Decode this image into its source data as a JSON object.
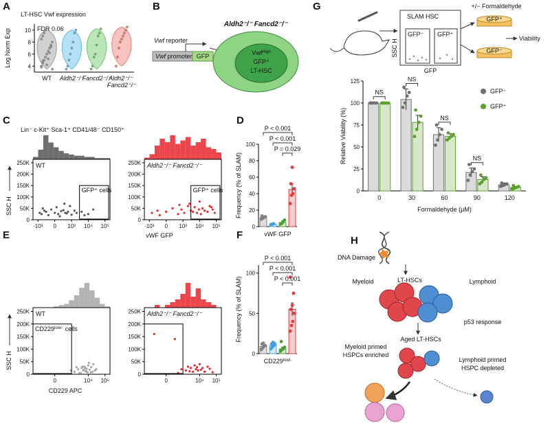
{
  "panel_letters": [
    "A",
    "B",
    "C",
    "D",
    "E",
    "F",
    "G",
    "H"
  ],
  "panel_c_header": "Lin⁻ c-Kit⁺ Sca-1⁺ CD41/48⁻ CD150⁺",
  "diagram_b": {
    "reporter_gene": "Vwf",
    "reporter_word": "reporter",
    "promoter_gene": "Vwf",
    "promoter_word": "promoter",
    "gfp": "GFP",
    "genotype": "Aldh2⁻/⁻ Fancd2⁻/⁻",
    "cell_gene": "Vwf",
    "cell_gene_sup": "High",
    "cell_gfp": "GFP⁺",
    "cell_type": "LT-HSC"
  },
  "diagram_g": {
    "facs_title": "SLAM HSC",
    "gate_neg": "GFP⁻",
    "gate_pos": "GFP⁺",
    "facs_ylabel": "SSC H",
    "facs_xlabel": "GFP",
    "treatment": "+/− Formaldehyde",
    "dish_pos": "GFP⁺",
    "dish_neg": "GFP⁻",
    "readout": "Viability"
  },
  "diagram_h": {
    "damage": "DNA Damage",
    "lt_hsc": "LT-HSCs",
    "myeloid": "Myeloid",
    "lymphoid": "Lymphoid",
    "p53": "p53 response",
    "aged": "Aged LT-HSCs",
    "myeloid_primed_1": "Myeloid primed",
    "myeloid_primed_2": "HSPCs enriched",
    "lymphoid_primed_1": "Lymphoid primed",
    "lymphoid_primed_2": "HSPC depleted"
  },
  "chart_data": [
    {
      "type": "violin",
      "title": "LT-HSC Vwf expression",
      "annotation": "FDR 0.06",
      "ylabel": "Log Norm Exp",
      "categories": [
        "WT",
        "Aldh2⁻/⁻",
        "Fancd2⁻/⁻",
        "Aldh2⁻/⁻ Fancd2⁻/⁻"
      ],
      "colors": [
        "#9a9a9a",
        "#5bbbe9",
        "#6cc667",
        "#ee7b70"
      ],
      "values": [
        [
          4,
          4.5,
          5,
          5.5,
          6,
          6.5,
          7,
          7.5,
          8,
          8.5,
          9,
          9.5,
          10,
          4.2,
          5.2,
          6.2,
          7.2,
          3.5,
          3.8,
          4.8
        ],
        [
          3.5,
          4,
          5,
          6,
          7,
          8,
          9.5,
          10
        ],
        [
          3.5,
          4,
          5.5,
          6,
          7.5,
          9,
          9.5,
          10.2
        ],
        [
          4,
          5.5,
          7,
          8,
          8.5,
          9,
          9.5,
          10,
          10.5
        ]
      ],
      "ylim": [
        3,
        11
      ],
      "yticks": [
        4,
        6,
        8,
        10
      ]
    },
    {
      "type": "scatter",
      "title": "WT",
      "ylabel": "SSC H",
      "gate_label": "GFP⁺ cells",
      "color": "#555555",
      "x": [
        -800,
        -600,
        -400,
        -300,
        -200,
        -100,
        0,
        50,
        100,
        200,
        300,
        400,
        500,
        600,
        800,
        1000,
        1500,
        2000,
        4000,
        6000,
        10000,
        20000,
        -500,
        150,
        350
      ],
      "y": [
        30000,
        25000,
        40000,
        35000,
        20000,
        45000,
        30000,
        55000,
        25000,
        38000,
        42000,
        30000,
        28000,
        35000,
        60000,
        22000,
        40000,
        30000,
        35000,
        20000,
        25000,
        45000,
        50000,
        15000,
        70000
      ],
      "histogram": [
        2,
        8,
        20,
        14,
        10,
        7,
        5,
        4,
        3,
        3,
        2,
        2,
        1,
        1,
        1
      ],
      "xlim": [
        -2000,
        200000
      ],
      "ylim": [
        0,
        265000
      ],
      "xticks": [
        {
          "value": -1000,
          "label": "-10³"
        },
        0,
        {
          "value": 1000,
          "label": "10³"
        },
        {
          "value": 10000,
          "label": "10⁴"
        },
        {
          "value": 100000,
          "label": "10⁵"
        }
      ],
      "yticks": [
        0,
        {
          "value": 50000,
          "label": "50K"
        },
        {
          "value": 100000,
          "label": "100K"
        },
        {
          "value": 150000,
          "label": "150K"
        },
        {
          "value": 200000,
          "label": "200K"
        },
        {
          "value": 250000,
          "label": "250K"
        }
      ]
    },
    {
      "type": "scatter",
      "title": "Aldh2⁻/⁻ Fancd2⁻/⁻",
      "xlabel": "vWF GFP",
      "gate_label": "GFP⁺ cells",
      "color": "#e8262b",
      "x": [
        -700,
        -300,
        0,
        200,
        500,
        800,
        1200,
        2000,
        3000,
        4000,
        5000,
        7000,
        9000,
        12000,
        15000,
        20000,
        30000,
        40000,
        60000,
        80000,
        -200,
        600,
        2500,
        10000,
        50000
      ],
      "y": [
        30000,
        40000,
        35000,
        50000,
        25000,
        45000,
        30000,
        60000,
        40000,
        35000,
        55000,
        30000,
        45000,
        25000,
        50000,
        40000,
        35000,
        60000,
        45000,
        30000,
        20000,
        65000,
        70000,
        80000,
        55000
      ],
      "histogram": [
        1,
        3,
        8,
        12,
        10,
        14,
        9,
        11,
        13,
        8,
        10,
        12,
        7,
        6,
        4
      ],
      "xlim": [
        -2000,
        200000
      ],
      "ylim": [
        0,
        265000
      ],
      "xticks": [
        {
          "value": -1000,
          "label": "-10³"
        },
        0,
        {
          "value": 1000,
          "label": "10³"
        },
        {
          "value": 10000,
          "label": "10⁴"
        },
        {
          "value": 100000,
          "label": "10⁵"
        }
      ],
      "yticks": [
        0,
        {
          "value": 50000,
          "label": "50K"
        },
        {
          "value": 100000,
          "label": "100K"
        },
        {
          "value": 150000,
          "label": "150K"
        },
        {
          "value": 200000,
          "label": "200K"
        },
        {
          "value": 250000,
          "label": "250K"
        }
      ]
    },
    {
      "type": "bar",
      "ylabel": "Frequency (% of SLAM)",
      "xlabel": "vWF GFP",
      "colors": [
        "#808080",
        "#3ea0e0",
        "#4aa02c",
        "#e8383a"
      ],
      "series": [
        {
          "values": [
            11,
            3,
            5,
            45
          ],
          "errors": [
            1,
            0.7,
            2,
            7
          ],
          "points": [
            [
              9,
              10,
              11,
              12,
              13,
              11
            ],
            [
              2.5,
              3,
              3.5
            ],
            [
              3,
              4,
              6,
              8
            ],
            [
              28,
              38,
              40,
              46,
              52,
              72
            ]
          ]
        }
      ],
      "annotations": [
        "P < 0.001",
        "P < 0.001",
        "P = 0.029"
      ],
      "ylim": [
        0,
        100
      ],
      "yticks": [
        0,
        20,
        40,
        60,
        80,
        100
      ]
    },
    {
      "type": "scatter",
      "title": "WT",
      "ylabel": "SSC H",
      "xlabel": "CD229 APC",
      "gate_label": "CD229",
      "gate_label_sup": "low/-",
      "gate_label_end": "cells",
      "color": "#a6a6a6",
      "x": [
        1500,
        2500,
        3000,
        4000,
        5000,
        6000,
        7000,
        8000,
        9000,
        10000,
        12000,
        15000,
        18000,
        20000,
        25000,
        3500,
        4500,
        5500,
        6500,
        7500,
        11000,
        14000,
        2000,
        30000,
        900
      ],
      "y": [
        10000,
        20000,
        5000,
        25000,
        15000,
        30000,
        12000,
        22000,
        8000,
        35000,
        18000,
        28000,
        10000,
        40000,
        15000,
        5000,
        30000,
        18000,
        25000,
        12000,
        45000,
        8000,
        28000,
        20000,
        15000
      ],
      "histogram": [
        0,
        0,
        0,
        0,
        1,
        2,
        3,
        6,
        10,
        16,
        20,
        14,
        8,
        3,
        1
      ],
      "xlim": [
        -2000,
        200000
      ],
      "ylim": [
        0,
        265000
      ],
      "xticks": [
        0,
        {
          "value": 10000,
          "label": "10⁴"
        },
        {
          "value": 100000,
          "label": "10⁵"
        }
      ],
      "yticks": [
        0,
        {
          "value": 50000,
          "label": "50K"
        },
        {
          "value": 100000,
          "label": "100K"
        },
        {
          "value": 150000,
          "label": "150K"
        },
        {
          "value": 200000,
          "label": "200K"
        },
        {
          "value": 250000,
          "label": "250K"
        }
      ]
    },
    {
      "type": "scatter",
      "title": "Aldh2⁻/⁻ Fancd2⁻/⁻",
      "color": "#e8262b",
      "x": [
        -500,
        300,
        800,
        1500,
        2000,
        3000,
        4000,
        5000,
        6000,
        8000,
        10000,
        15000,
        20000,
        30000,
        500,
        2500,
        7000,
        12000,
        40000,
        60000
      ],
      "y": [
        160000,
        140000,
        20000,
        15000,
        30000,
        25000,
        10000,
        35000,
        20000,
        15000,
        40000,
        25000,
        10000,
        30000,
        5000,
        12000,
        28000,
        18000,
        22000,
        8000
      ],
      "histogram": [
        0,
        0,
        1,
        0,
        1,
        2,
        3,
        5,
        9,
        4,
        7,
        3,
        2,
        1,
        0
      ],
      "xlim": [
        -2000,
        200000
      ],
      "ylim": [
        0,
        265000
      ],
      "xticks": [
        0,
        {
          "value": 10000,
          "label": "10⁴"
        },
        {
          "value": 100000,
          "label": "10⁵"
        }
      ],
      "yticks": [
        0,
        {
          "value": 50000,
          "label": "50K"
        },
        {
          "value": 100000,
          "label": "100K"
        },
        {
          "value": 150000,
          "label": "150K"
        },
        {
          "value": 200000,
          "label": "200K"
        },
        {
          "value": 250000,
          "label": "250K"
        }
      ]
    },
    {
      "type": "bar",
      "ylabel": "Frequency (% of SLAM)",
      "xlabel": "CD229",
      "xlabel_sup": "low/-",
      "colors": [
        "#808080",
        "#3ea0e0",
        "#4aa02c",
        "#e8383a"
      ],
      "series": [
        {
          "values": [
            9,
            10,
            6,
            55
          ],
          "errors": [
            1.5,
            1,
            2,
            8
          ],
          "points": [
            [
              5,
              7,
              9,
              10,
              12,
              13
            ],
            [
              6,
              8,
              10,
              11,
              12,
              14,
              13
            ],
            [
              3,
              5,
              6,
              8,
              15
            ],
            [
              28,
              35,
              40,
              50,
              55,
              60,
              75,
              95
            ]
          ]
        }
      ],
      "annotations": [
        "P < 0.001",
        "P < 0.001",
        "P < 0.001"
      ],
      "ylim": [
        0,
        110
      ],
      "yticks": [
        0,
        50,
        100
      ]
    },
    {
      "type": "bar",
      "ylabel": "Relative Viability (%)",
      "xlabel": "Formaldehyde (μM)",
      "legend": "top-right",
      "categories": [
        "0",
        "30",
        "60",
        "90",
        "120"
      ],
      "series": [
        {
          "name": "GFP⁻",
          "color": "#707070",
          "values": [
            100,
            104,
            64,
            21,
            7
          ],
          "errors": [
            1,
            12,
            8,
            5,
            2
          ],
          "points": [
            [
              100,
              100,
              100,
              100,
              100
            ],
            [
              95,
              100,
              108,
              112,
              118
            ],
            [
              52,
              58,
              64,
              70,
              75
            ],
            [
              12,
              18,
              22,
              25,
              30
            ],
            [
              5,
              6,
              7,
              8,
              9
            ]
          ]
        },
        {
          "name": "GFP⁺",
          "color": "#5aa02c",
          "values": [
            100,
            78,
            62,
            13,
            4
          ],
          "errors": [
            1,
            8,
            3,
            3,
            1
          ],
          "points": [
            [
              100,
              100,
              100,
              100,
              100
            ],
            [
              62,
              70,
              78,
              85,
              92
            ],
            [
              58,
              60,
              62,
              64,
              66
            ],
            [
              8,
              10,
              13,
              15,
              18
            ],
            [
              2,
              3,
              4,
              5,
              6
            ]
          ]
        }
      ],
      "annotations": [
        "NS",
        "NS",
        "NS",
        "NS"
      ],
      "ylim": [
        0,
        125
      ],
      "yticks": [
        0,
        25,
        50,
        75,
        100,
        125
      ]
    }
  ]
}
